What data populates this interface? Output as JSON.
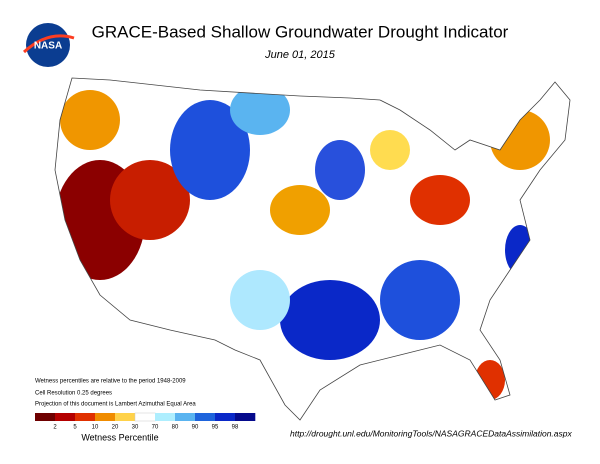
{
  "header": {
    "logo": "NASA",
    "title": "GRACE-Based Shallow Groundwater Drought Indicator",
    "date": "June 01, 2015"
  },
  "notes": [
    "Wetness percentiles are relative to the period 1948-2009",
    "Cell Resolution 0.25 degrees",
    "Projection of this document is Lambert Azimuthal Equal Area"
  ],
  "legend": {
    "title": "Wetness Percentile",
    "ticks": [
      2,
      5,
      10,
      20,
      30,
      70,
      80,
      90,
      95,
      98
    ],
    "colors": [
      "#6e0000",
      "#b40000",
      "#e03000",
      "#f08c00",
      "#ffd24a",
      "#ffffff",
      "#aeeefe",
      "#5ab4f0",
      "#1e64dc",
      "#0a28c8",
      "#050a8c"
    ]
  },
  "source_url": "http://drought.unl.edu/MonitoringTools/NASAGRACEDataAssimilation.aspx"
}
